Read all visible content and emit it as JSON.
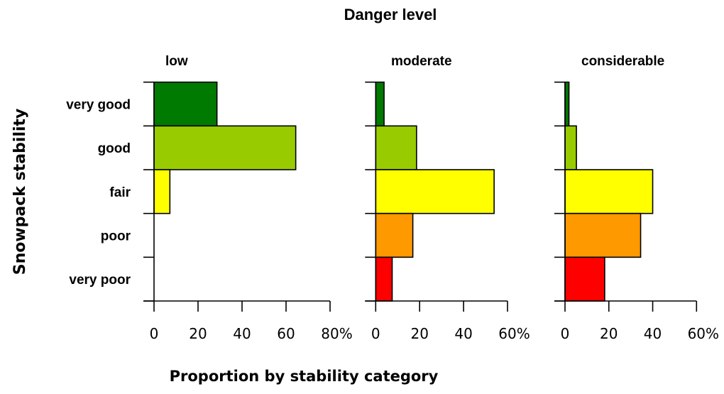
{
  "chart_data": {
    "type": "bar",
    "orientation": "horizontal",
    "title": "Danger level",
    "xlabel": "Proportion by stability category",
    "ylabel": "Snowpack stability",
    "categories": [
      "very good",
      "good",
      "fair",
      "poor",
      "very poor"
    ],
    "category_colors": [
      "#007a00",
      "#99cc00",
      "#ffff00",
      "#ff9900",
      "#ff0000"
    ],
    "grid": false,
    "legend": "none",
    "panels": [
      {
        "name": "low",
        "values": [
          28.6,
          64.4,
          7.2,
          0,
          0
        ],
        "xlim": [
          0,
          80
        ],
        "ticks": [
          0,
          20,
          40,
          60,
          80
        ],
        "tick_labels": [
          "0",
          "20",
          "40",
          "60",
          "80%"
        ]
      },
      {
        "name": "moderate",
        "values": [
          3.8,
          18.6,
          53.9,
          16.9,
          7.5
        ],
        "xlim": [
          0,
          60
        ],
        "ticks": [
          0,
          20,
          40,
          60
        ],
        "tick_labels": [
          "0",
          "20",
          "40",
          "60%"
        ]
      },
      {
        "name": "considerable",
        "values": [
          1.8,
          5.2,
          40.0,
          34.5,
          18.1
        ],
        "xlim": [
          0,
          60
        ],
        "ticks": [
          0,
          20,
          40,
          60
        ],
        "tick_labels": [
          "0",
          "20",
          "40",
          "60%"
        ]
      }
    ]
  }
}
